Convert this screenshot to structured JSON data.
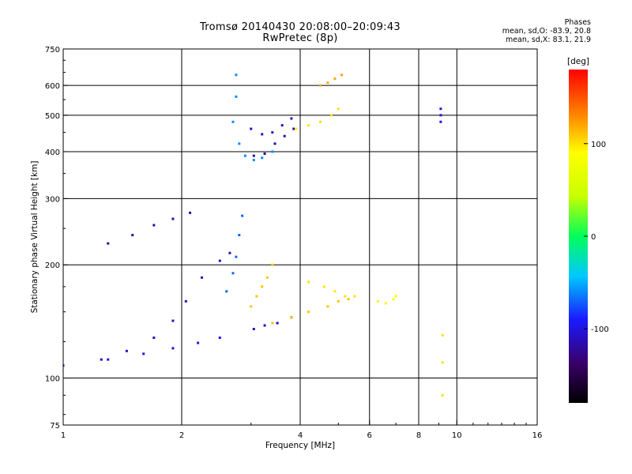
{
  "header": {
    "title_line1": "Tromsø 20140430 20:08:00–20:09:43",
    "title_line2": "RwPretec (8p)",
    "stats_heading": "Phases",
    "stats_o": "mean, sd,O: -83.9, 20.8",
    "stats_x": "mean, sd,X: 83.1, 21.9"
  },
  "colorbar": {
    "label": "[deg]",
    "ticks": [
      {
        "value": 100,
        "label": "100"
      },
      {
        "value": 0,
        "label": "0"
      },
      {
        "value": -100,
        "label": "-100"
      }
    ],
    "range": [
      -180,
      180
    ]
  },
  "chart_data": {
    "type": "scatter",
    "title": "Tromsø 20140430 20:08:00–20:09:43",
    "subtitle": "RwPretec (8p)",
    "xlabel": "Frequency [MHz]",
    "ylabel": "Stationary phase Virtual Height [km]",
    "x_scale": "log",
    "y_scale": "log",
    "xlim": [
      1,
      16
    ],
    "ylim": [
      75,
      750
    ],
    "x_ticks": [
      1,
      2,
      4,
      6,
      8,
      10,
      16
    ],
    "y_ticks": [
      75,
      100,
      200,
      300,
      400,
      500,
      600,
      750
    ],
    "x_gridlines": [
      2,
      4,
      6,
      8,
      10
    ],
    "y_gridlines": [
      100,
      200,
      300,
      400,
      500,
      600
    ],
    "grid": true,
    "color_label": "[deg]",
    "color_range": [
      -180,
      180
    ],
    "traces": [
      {
        "x": [
          1.0,
          1.3,
          1.6,
          1.9,
          2.2,
          2.5
        ],
        "y": [
          108,
          112,
          116,
          120,
          124,
          128
        ],
        "phase": -100
      },
      {
        "x": [
          1.25,
          1.45,
          1.7,
          1.9,
          2.05,
          2.25,
          2.5,
          2.65
        ],
        "y": [
          112,
          118,
          128,
          142,
          160,
          185,
          205,
          215
        ],
        "phase": -110
      },
      {
        "x": [
          1.3,
          1.5,
          1.7,
          1.9,
          2.1
        ],
        "y": [
          228,
          240,
          255,
          265,
          275
        ],
        "phase": -120
      },
      {
        "x": [
          2.6,
          2.7,
          2.75,
          2.8,
          2.85
        ],
        "y": [
          170,
          190,
          210,
          240,
          270
        ],
        "phase": -70
      },
      {
        "x": [
          2.75,
          2.75,
          2.7,
          2.8,
          2.9,
          3.05,
          3.2,
          3.4
        ],
        "y": [
          640,
          560,
          480,
          420,
          390,
          380,
          385,
          400
        ],
        "phase": -60
      },
      {
        "x": [
          3.0,
          3.2,
          3.4,
          3.6,
          3.8
        ],
        "y": [
          460,
          445,
          450,
          470,
          490
        ],
        "phase": -110
      },
      {
        "x": [
          3.05,
          3.25,
          3.45,
          3.65,
          3.85
        ],
        "y": [
          390,
          395,
          420,
          440,
          460
        ],
        "phase": -120
      },
      {
        "x": [
          3.9,
          4.2,
          4.5,
          4.8,
          5.0
        ],
        "y": [
          460,
          470,
          480,
          500,
          520
        ],
        "phase": 100
      },
      {
        "x": [
          4.5,
          4.7,
          4.9,
          5.1
        ],
        "y": [
          600,
          610,
          625,
          640
        ],
        "phase": 120
      },
      {
        "x": [
          3.0,
          3.1,
          3.2,
          3.3,
          3.4
        ],
        "y": [
          155,
          165,
          175,
          185,
          200
        ],
        "phase": 110
      },
      {
        "x": [
          3.05,
          3.25,
          3.5,
          3.8
        ],
        "y": [
          135,
          138,
          140,
          145
        ],
        "phase": -115
      },
      {
        "x": [
          3.4,
          3.8,
          4.2,
          4.7,
          5.0,
          5.3
        ],
        "y": [
          140,
          145,
          150,
          155,
          160,
          162
        ],
        "phase": 110
      },
      {
        "x": [
          4.2,
          4.6,
          4.9,
          5.2,
          5.5
        ],
        "y": [
          180,
          175,
          170,
          165,
          165
        ],
        "phase": 100
      },
      {
        "x": [
          6.3,
          6.6,
          6.9,
          7.0
        ],
        "y": [
          160,
          158,
          162,
          165
        ],
        "phase": 80
      },
      {
        "x": [
          9.1,
          9.1,
          9.1
        ],
        "y": [
          520,
          500,
          480
        ],
        "phase": -100
      },
      {
        "x": [
          9.2,
          9.2,
          9.2
        ],
        "y": [
          130,
          110,
          90
        ],
        "phase": 100
      }
    ]
  }
}
